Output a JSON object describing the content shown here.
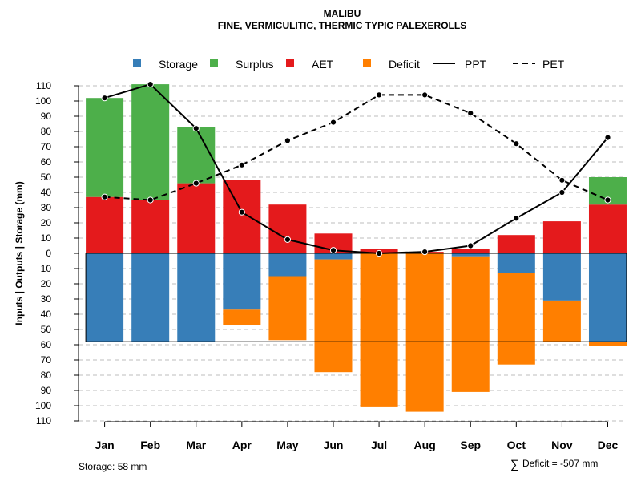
{
  "chart_data": {
    "type": "bar",
    "title": "MALIBU",
    "subtitle": "FINE, VERMICULITIC, THERMIC TYPIC PALEXEROLLS",
    "ylabel": "Inputs | Outputs | Storage     (mm)",
    "ylim": [
      -110,
      110
    ],
    "yticks": [
      110,
      100,
      90,
      80,
      70,
      60,
      50,
      40,
      30,
      20,
      10,
      0,
      -10,
      -20,
      -30,
      -40,
      -50,
      -60,
      -70,
      -80,
      -90,
      -100,
      -110
    ],
    "ytick_labels": [
      "110",
      "100",
      "90",
      "80",
      "70",
      "60",
      "50",
      "40",
      "30",
      "20",
      "10",
      "0",
      "10",
      "20",
      "30",
      "40",
      "50",
      "60",
      "70",
      "80",
      "90",
      "100",
      "110"
    ],
    "categories": [
      "Jan",
      "Feb",
      "Mar",
      "Apr",
      "May",
      "Jun",
      "Jul",
      "Aug",
      "Sep",
      "Oct",
      "Nov",
      "Dec"
    ],
    "colors": {
      "storage": "#377EB8",
      "surplus": "#4DAF4A",
      "aet": "#E41A1C",
      "deficit": "#FF7F00",
      "line": "#000000",
      "grid": "#bdbdbd"
    },
    "storage_capacity": 58,
    "legend": {
      "storage": "Storage",
      "surplus": "Surplus",
      "aet": "AET",
      "deficit": "Deficit",
      "ppt": "PPT",
      "pet": "PET"
    },
    "series": [
      {
        "name": "AET",
        "values": [
          37,
          35,
          46,
          48,
          32,
          13,
          3,
          1,
          3,
          12,
          21,
          32
        ]
      },
      {
        "name": "Surplus",
        "values": [
          65,
          76,
          37,
          0,
          0,
          0,
          0,
          0,
          0,
          0,
          0,
          18
        ]
      },
      {
        "name": "Storage",
        "values": [
          58,
          58,
          58,
          37,
          15,
          4,
          0,
          0,
          2,
          13,
          31,
          58
        ]
      },
      {
        "name": "Deficit",
        "values": [
          0,
          0,
          0,
          10,
          42,
          74,
          101,
          104,
          89,
          60,
          27,
          3
        ]
      },
      {
        "name": "PPT",
        "values": [
          102,
          111,
          82,
          27,
          9,
          2,
          0,
          1,
          5,
          23,
          40,
          76
        ]
      },
      {
        "name": "PET",
        "values": [
          37,
          35,
          46,
          58,
          74,
          86,
          104,
          104,
          92,
          72,
          48,
          35
        ]
      }
    ]
  },
  "footer": {
    "storage_note": "Storage: 58 mm",
    "deficit_symbol": "∑",
    "deficit_note": "Deficit = -507 mm"
  }
}
